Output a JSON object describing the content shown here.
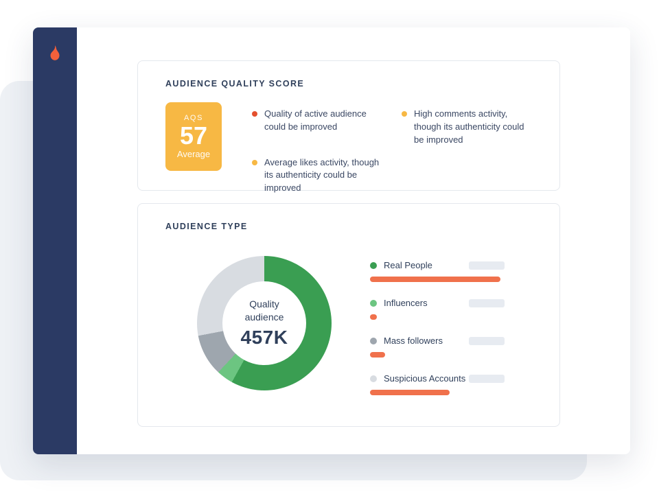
{
  "window": {
    "sidebar": {
      "bg_color": "#2B3A64",
      "flame_color": "#F4603B"
    }
  },
  "aqs_card": {
    "title": "AUDIENCE QUALITY SCORE",
    "badge": {
      "label": "AQS",
      "score": "57",
      "rating": "Average",
      "bg_color": "#F7B844"
    },
    "bullets": [
      {
        "dot_color": "#E4502E",
        "text": "Quality of active audience could be improved"
      },
      {
        "dot_color": "#F7B844",
        "text": "Average likes activity, though its authenticity could be improved"
      },
      {
        "dot_color": "#F7B844",
        "text": "High comments activity, though its authenticity could be improved"
      }
    ]
  },
  "audience_card": {
    "title": "AUDIENCE TYPE"
  },
  "chart_data": {
    "type": "pie",
    "variant": "donut",
    "title": "Audience Type",
    "center_label": "Quality audience",
    "center_value": "457K",
    "legend_position": "right",
    "bar_color": "#F0714C",
    "segments": [
      {
        "label": "Real People",
        "value": 58,
        "color": "#3A9E52",
        "activity_percent": 97
      },
      {
        "label": "Influencers",
        "value": 4,
        "color": "#6CC581",
        "activity_percent": 5
      },
      {
        "label": "Mass followers",
        "value": 10,
        "color": "#9EA6AE",
        "activity_percent": 11
      },
      {
        "label": "Suspicious Accounts",
        "value": 28,
        "color": "#D8DCE1",
        "activity_percent": 59
      }
    ]
  }
}
